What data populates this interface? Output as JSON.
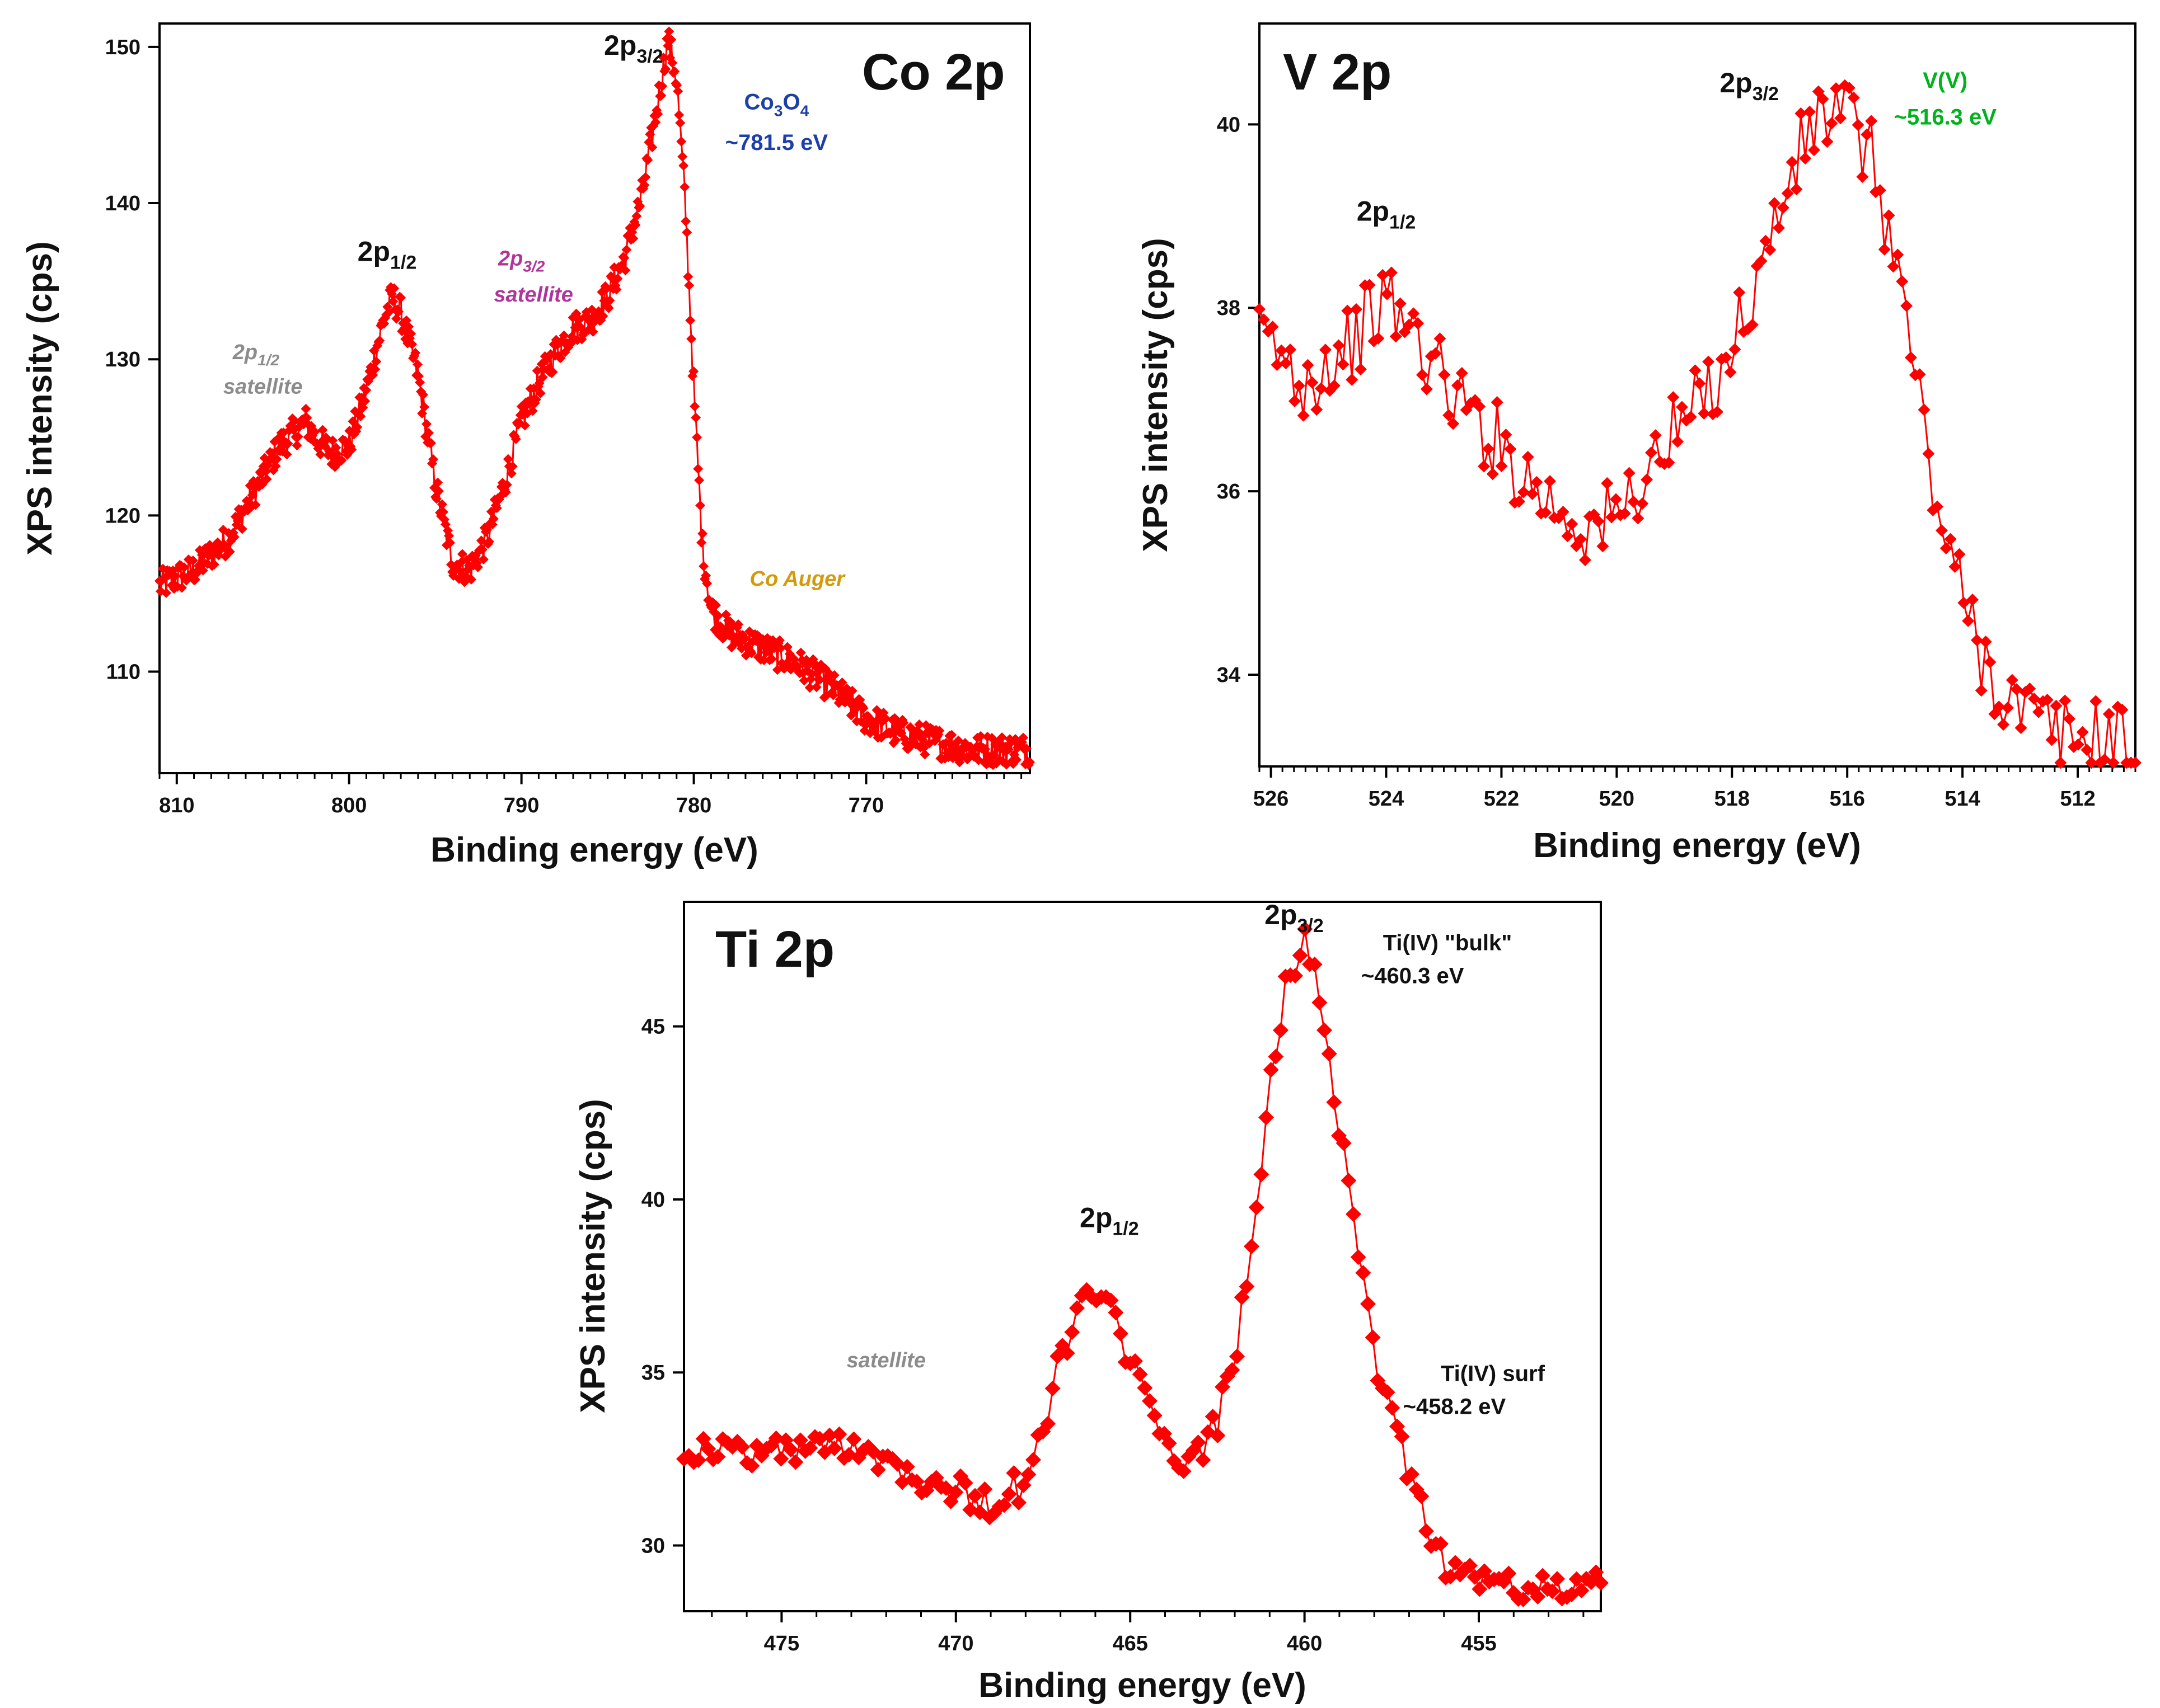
{
  "colors": {
    "series": "#ff0000",
    "axis": "#000000",
    "co3o4_note": "#1c3fa8",
    "satellite_gray": "#8c8c8c",
    "satellite_magenta": "#b0359a",
    "auger": "#d49a0a",
    "vv_note": "#00b21c",
    "dark_note": "#111111"
  },
  "chart_data": [
    {
      "id": "co",
      "type": "scatter",
      "title": "Co 2p",
      "xlabel": "Binding energy (eV)",
      "ylabel": "XPS intensity (cps)",
      "xlim": [
        811,
        760.5
      ],
      "ylim": [
        103.5,
        151.5
      ],
      "xticks": [
        810,
        800,
        790,
        780,
        770
      ],
      "xtick_labels": [
        "810",
        "800",
        "790",
        "780",
        "770"
      ],
      "yticks": [
        110,
        120,
        130,
        140,
        150
      ],
      "ytick_labels": [
        "110",
        "120",
        "130",
        "140",
        "150"
      ],
      "minor_step": 1,
      "noise": 1.0,
      "series": [
        {
          "name": "Co 2p",
          "x": [
            811,
            809,
            807,
            805,
            804,
            803,
            802.5,
            802,
            801,
            800,
            799,
            798,
            797.5,
            797,
            796,
            795,
            794,
            793,
            792,
            791,
            790,
            789,
            788,
            787,
            786,
            785,
            784,
            783,
            782,
            781.5,
            781,
            780.5,
            780,
            779.5,
            779,
            778,
            776,
            774,
            772,
            770,
            768,
            766,
            764,
            762,
            760.5
          ],
          "values": [
            115.5,
            116.5,
            118.5,
            122.5,
            124.5,
            125.5,
            126,
            125,
            124,
            124.5,
            128,
            132.5,
            134,
            133,
            129,
            122,
            117,
            116.5,
            118.5,
            122,
            126,
            128.5,
            130.5,
            132,
            132.5,
            134,
            136.5,
            140.5,
            147,
            150.5,
            148,
            140,
            128,
            118,
            114,
            112.5,
            111.5,
            110.5,
            109,
            107,
            106,
            105.5,
            105,
            105,
            105
          ]
        }
      ],
      "annotations": [
        {
          "id": "co_2p32",
          "text": "2p",
          "sub": "3/2",
          "x": 783.5,
          "y": 149.5,
          "style": "peak-label",
          "color": "#111111"
        },
        {
          "id": "co_2p12",
          "text": "2p",
          "sub": "1/2",
          "x": 797.8,
          "y": 136.3,
          "style": "peak-label",
          "color": "#111111"
        },
        {
          "id": "co_co3o4_formula",
          "text": "Co3O4",
          "x": 775.2,
          "y": 146.0,
          "style": "note",
          "color": "#1c3fa8"
        },
        {
          "id": "co_co3o4_energy",
          "text": "~781.5 eV",
          "x": 775.2,
          "y": 143.4,
          "style": "note",
          "color": "#1c3fa8"
        },
        {
          "id": "co_sat32_a",
          "text": "2p",
          "sub": "3/2",
          "x": 790.0,
          "y": 136.0,
          "style": "note-italic",
          "color": "#b0359a"
        },
        {
          "id": "co_sat32_b",
          "text": "satellite",
          "x": 789.3,
          "y": 133.7,
          "style": "note-italic",
          "color": "#b0359a"
        },
        {
          "id": "co_sat12_a",
          "text": "2p",
          "sub": "1/2",
          "x": 805.4,
          "y": 130.0,
          "style": "note-italic",
          "color": "#8c8c8c"
        },
        {
          "id": "co_sat12_b",
          "text": "satellite",
          "x": 805.0,
          "y": 127.8,
          "style": "note-italic",
          "color": "#8c8c8c"
        },
        {
          "id": "co_auger",
          "text": "Co Auger",
          "x": 774.0,
          "y": 115.5,
          "style": "note-italic",
          "color": "#d49a0a"
        }
      ]
    },
    {
      "id": "v",
      "type": "scatter",
      "title": "V 2p",
      "xlabel": "Binding energy (eV)",
      "ylabel": "XPS intensity (cps)",
      "xlim": [
        526.2,
        511.0
      ],
      "ylim": [
        33.0,
        41.1
      ],
      "xticks": [
        526,
        524,
        522,
        520,
        518,
        516,
        514,
        512
      ],
      "xtick_labels": [
        "526",
        "524",
        "522",
        "520",
        "518",
        "516",
        "514",
        "512"
      ],
      "yticks": [
        34,
        36,
        38,
        40
      ],
      "ytick_labels": [
        "34",
        "36",
        "38",
        "40"
      ],
      "minor_step": 0.2,
      "noise": 0.45,
      "series": [
        {
          "name": "V 2p",
          "x": [
            526,
            525.5,
            525,
            524.5,
            524,
            523.5,
            523,
            522.5,
            522,
            521.5,
            521,
            520.5,
            520,
            519.5,
            519,
            518.5,
            518,
            517.5,
            517,
            516.5,
            516,
            515.5,
            515,
            514.5,
            514,
            513.5,
            513,
            512.5,
            512,
            511.5,
            511.2
          ],
          "values": [
            37.6,
            37.2,
            37.4,
            37.7,
            38.1,
            37.7,
            37.2,
            36.8,
            36.5,
            36.1,
            35.8,
            35.6,
            35.7,
            36.2,
            36.6,
            37.0,
            37.6,
            38.4,
            39.4,
            40.1,
            40.1,
            39.5,
            38.0,
            36.0,
            34.8,
            34.0,
            33.6,
            33.4,
            33.3,
            33.3,
            33.2
          ]
        }
      ],
      "annotations": [
        {
          "id": "v_2p32",
          "text": "2p",
          "sub": "3/2",
          "x": 517.7,
          "y": 40.35,
          "style": "peak-label",
          "color": "#111111"
        },
        {
          "id": "v_2p12",
          "text": "2p",
          "sub": "1/2",
          "x": 524.0,
          "y": 38.95,
          "style": "peak-label",
          "color": "#111111"
        },
        {
          "id": "v_vv_a",
          "text": "V(V)",
          "x": 514.3,
          "y": 40.4,
          "style": "note",
          "color": "#00b21c"
        },
        {
          "id": "v_vv_b",
          "text": "~516.3 eV",
          "x": 514.3,
          "y": 40.0,
          "style": "note",
          "color": "#00b21c"
        }
      ]
    },
    {
      "id": "ti",
      "type": "scatter",
      "title": "Ti 2p",
      "xlabel": "Binding energy (eV)",
      "ylabel": "XPS intensity (cps)",
      "xlim": [
        477.8,
        451.5
      ],
      "ylim": [
        28.1,
        48.6
      ],
      "xticks": [
        475,
        470,
        465,
        460,
        455
      ],
      "xtick_labels": [
        "475",
        "470",
        "465",
        "460",
        "455"
      ],
      "yticks": [
        30,
        35,
        40,
        45
      ],
      "ytick_labels": [
        "30",
        "35",
        "40",
        "45"
      ],
      "minor_step": 1,
      "noise": 0.5,
      "series": [
        {
          "name": "Ti 2p",
          "x": [
            477.8,
            476,
            474,
            473,
            472,
            471,
            470,
            469,
            468,
            467.5,
            467,
            466.5,
            466,
            465.5,
            465,
            464.5,
            464,
            463.5,
            463,
            462.5,
            462,
            461.5,
            461,
            460.5,
            460,
            459.5,
            459,
            458.5,
            458,
            457.5,
            457,
            456.5,
            456,
            455,
            454,
            453,
            452,
            451.5
          ],
          "values": [
            32.8,
            32.7,
            32.8,
            33.0,
            32.5,
            32.0,
            31.6,
            31.2,
            31.8,
            33.2,
            35.5,
            36.8,
            37.2,
            36.6,
            35.4,
            34.0,
            32.8,
            32.3,
            32.6,
            33.6,
            35.5,
            39.0,
            43.0,
            46.3,
            47.5,
            45.8,
            42.0,
            38.5,
            35.5,
            33.8,
            32.2,
            30.7,
            29.5,
            29.0,
            28.8,
            28.7,
            28.7,
            28.9
          ]
        }
      ],
      "annotations": [
        {
          "id": "ti_2p32",
          "text": "2p",
          "sub": "3/2",
          "x": 460.3,
          "y": 47.95,
          "style": "peak-label",
          "color": "#111111"
        },
        {
          "id": "ti_2p12",
          "text": "2p",
          "sub": "1/2",
          "x": 465.6,
          "y": 39.2,
          "style": "peak-label",
          "color": "#111111"
        },
        {
          "id": "ti_bulk_a",
          "text": "Ti(IV) \"bulk\"",
          "x": 455.9,
          "y": 47.2,
          "style": "note",
          "color": "#111111"
        },
        {
          "id": "ti_bulk_b",
          "text": "~460.3 eV",
          "x": 456.9,
          "y": 46.25,
          "style": "note",
          "color": "#111111"
        },
        {
          "id": "ti_surf_a",
          "text": "Ti(IV) surf",
          "x": 454.6,
          "y": 34.75,
          "style": "note",
          "color": "#111111"
        },
        {
          "id": "ti_surf_b",
          "text": "~458.2 eV",
          "x": 455.7,
          "y": 33.8,
          "style": "note",
          "color": "#111111"
        },
        {
          "id": "ti_sat",
          "text": "satellite",
          "x": 472.0,
          "y": 35.15,
          "style": "note-italic",
          "color": "#8c8c8c"
        }
      ]
    }
  ]
}
